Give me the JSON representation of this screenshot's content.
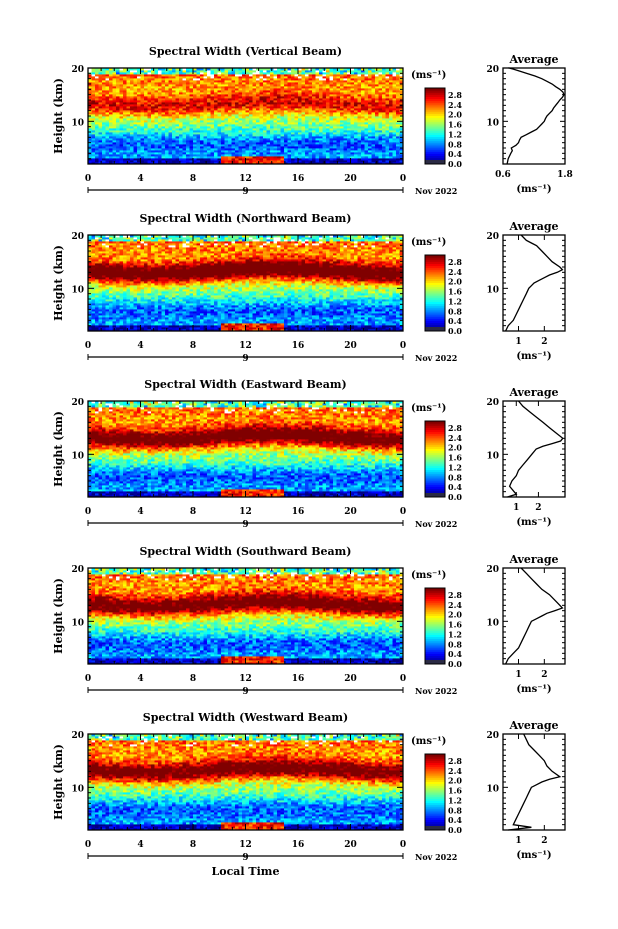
{
  "chart_data": [
    {
      "type": "heatmap",
      "title": "Spectral Width (Vertical Beam)",
      "ylabel": "Height (km)",
      "xlim": [
        0,
        24
      ],
      "ylim": [
        2,
        20
      ],
      "x_ticks": [
        "0",
        "4",
        "8",
        "12",
        "16",
        "20",
        "0"
      ],
      "y_ticks": [
        "10",
        "20"
      ],
      "date_marker": "9",
      "date_label": "Nov 2022",
      "colorbar": {
        "unit": "(ms⁻¹)",
        "ticks": [
          "2.8",
          "2.4",
          "2.0",
          "1.6",
          "1.2",
          "0.8",
          "0.4",
          "0.0"
        ]
      },
      "profile": {
        "title": "Average",
        "xlabel": "(ms⁻¹)",
        "xlim": [
          0.6,
          1.8
        ],
        "x_ticks": [
          "0.6",
          "1.8"
        ],
        "y_ticks": [
          "10",
          "20"
        ],
        "x": [
          0.68,
          0.7,
          0.75,
          0.78,
          0.76,
          0.85,
          0.9,
          0.92,
          0.95,
          1.05,
          1.15,
          1.25,
          1.3,
          1.35,
          1.4,
          1.42,
          1.45,
          1.5,
          1.55,
          1.58,
          1.62,
          1.66,
          1.7,
          1.75,
          1.78,
          1.76,
          1.7,
          1.62,
          1.55,
          1.45,
          1.35,
          1.22,
          1.05,
          0.9,
          0.8,
          0.75,
          0.72,
          0.7
        ],
        "y": [
          2,
          3,
          4,
          4.5,
          5,
          5.5,
          6,
          6.5,
          7,
          7.5,
          8,
          8.5,
          9,
          9.5,
          10,
          10.5,
          11,
          11.5,
          12,
          12.5,
          13,
          13.5,
          14,
          14.5,
          15,
          15.5,
          16,
          16.5,
          17,
          17.5,
          18,
          18.5,
          19,
          19.5,
          19.8,
          19.9,
          20,
          20
        ]
      }
    },
    {
      "type": "heatmap",
      "title": "Spectral Width (Northward Beam)",
      "ylabel": "Height (km)",
      "xlim": [
        0,
        24
      ],
      "ylim": [
        2,
        20
      ],
      "x_ticks": [
        "0",
        "4",
        "8",
        "12",
        "16",
        "20",
        "0"
      ],
      "y_ticks": [
        "10",
        "20"
      ],
      "date_marker": "9",
      "date_label": "Nov 2022",
      "colorbar": {
        "unit": "(ms⁻¹)",
        "ticks": [
          "2.8",
          "2.4",
          "2.0",
          "1.6",
          "1.2",
          "0.8",
          "0.4",
          "0.0"
        ]
      },
      "profile": {
        "title": "Average",
        "xlabel": "(ms⁻¹)",
        "xlim": [
          0.4,
          2.8
        ],
        "x_ticks": [
          "1",
          "2"
        ],
        "y_ticks": [
          "10",
          "20"
        ],
        "x": [
          0.5,
          0.6,
          0.8,
          0.9,
          1.0,
          1.1,
          1.2,
          1.3,
          1.4,
          1.5,
          1.6,
          1.8,
          2.0,
          2.2,
          2.5,
          2.7,
          2.6,
          2.3,
          2.1,
          1.9,
          1.7,
          1.5,
          1.3,
          1.1
        ],
        "y": [
          2,
          3,
          4,
          5,
          6,
          7,
          8,
          9,
          10,
          10.5,
          11,
          11.5,
          12,
          12.5,
          13,
          13.5,
          14,
          15,
          16,
          17,
          18,
          18.5,
          19,
          20
        ]
      }
    },
    {
      "type": "heatmap",
      "title": "Spectral Width (Eastward Beam)",
      "ylabel": "Height (km)",
      "xlim": [
        0,
        24
      ],
      "ylim": [
        2,
        20
      ],
      "x_ticks": [
        "0",
        "4",
        "8",
        "12",
        "16",
        "20",
        "0"
      ],
      "y_ticks": [
        "10",
        "20"
      ],
      "date_marker": "9",
      "date_label": "Nov 2022",
      "colorbar": {
        "unit": "(ms⁻¹)",
        "ticks": [
          "2.8",
          "2.4",
          "2.0",
          "1.6",
          "1.2",
          "0.8",
          "0.4",
          "0.0"
        ]
      },
      "profile": {
        "title": "Average",
        "xlabel": "(ms⁻¹)",
        "xlim": [
          0.4,
          3.2
        ],
        "x_ticks": [
          "1",
          "2"
        ],
        "y_ticks": [
          "10",
          "20"
        ],
        "x": [
          0.6,
          1.0,
          0.9,
          0.7,
          0.8,
          1.0,
          1.1,
          1.3,
          1.5,
          1.7,
          1.9,
          2.2,
          2.6,
          3.0,
          3.1,
          2.8,
          2.5,
          2.2,
          1.9,
          1.6,
          1.3,
          1.1
        ],
        "y": [
          2,
          2.5,
          3,
          4,
          5,
          6,
          7,
          8,
          9,
          10,
          11,
          11.5,
          12,
          12.5,
          13,
          14,
          15,
          16,
          17,
          18,
          19,
          20
        ]
      }
    },
    {
      "type": "heatmap",
      "title": "Spectral Width (Southward Beam)",
      "ylabel": "Height (km)",
      "xlim": [
        0,
        24
      ],
      "ylim": [
        2,
        20
      ],
      "x_ticks": [
        "0",
        "4",
        "8",
        "12",
        "16",
        "20",
        "0"
      ],
      "y_ticks": [
        "10",
        "20"
      ],
      "date_marker": "9",
      "date_label": "Nov 2022",
      "colorbar": {
        "unit": "(ms⁻¹)",
        "ticks": [
          "2.8",
          "2.4",
          "2.0",
          "1.6",
          "1.2",
          "0.8",
          "0.4",
          "0.0"
        ]
      },
      "profile": {
        "title": "Average",
        "xlabel": "(ms⁻¹)",
        "xlim": [
          0.4,
          2.8
        ],
        "x_ticks": [
          "1",
          "2"
        ],
        "y_ticks": [
          "10",
          "20"
        ],
        "x": [
          0.5,
          0.6,
          0.8,
          1.0,
          1.1,
          1.2,
          1.3,
          1.4,
          1.5,
          1.7,
          1.9,
          2.1,
          2.4,
          2.7,
          2.5,
          2.2,
          1.9,
          1.7,
          1.5,
          1.3,
          1.1
        ],
        "y": [
          2,
          3,
          4,
          5,
          6,
          7,
          8,
          9,
          10,
          10.5,
          11,
          11.5,
          12,
          12.5,
          13.5,
          15,
          16,
          17,
          18,
          19,
          20
        ]
      }
    },
    {
      "type": "heatmap",
      "title": "Spectral Width (Westward Beam)",
      "ylabel": "Height (km)",
      "xlabel": "Local Time",
      "xlim": [
        0,
        24
      ],
      "ylim": [
        2,
        20
      ],
      "x_ticks": [
        "0",
        "4",
        "8",
        "12",
        "16",
        "20",
        "0"
      ],
      "y_ticks": [
        "10",
        "20"
      ],
      "date_marker": "9",
      "date_label": "Nov 2022",
      "colorbar": {
        "unit": "(ms⁻¹)",
        "ticks": [
          "2.8",
          "2.4",
          "2.0",
          "1.6",
          "1.2",
          "0.8",
          "0.4",
          "0.0"
        ]
      },
      "profile": {
        "title": "Average",
        "xlabel": "(ms⁻¹)",
        "xlim": [
          0.4,
          2.8
        ],
        "x_ticks": [
          "1",
          "2"
        ],
        "y_ticks": [
          "10",
          "20"
        ],
        "x": [
          0.6,
          1.5,
          0.8,
          0.9,
          1.0,
          1.1,
          1.2,
          1.3,
          1.4,
          1.5,
          1.7,
          1.9,
          2.2,
          2.6,
          2.3,
          2.1,
          2.0,
          1.8,
          1.6,
          1.4,
          1.2
        ],
        "y": [
          2,
          2.5,
          3,
          4,
          5,
          6,
          7,
          8,
          9,
          10,
          10.5,
          11,
          11.5,
          12,
          13,
          14,
          15,
          16,
          17,
          18,
          20
        ]
      }
    }
  ]
}
